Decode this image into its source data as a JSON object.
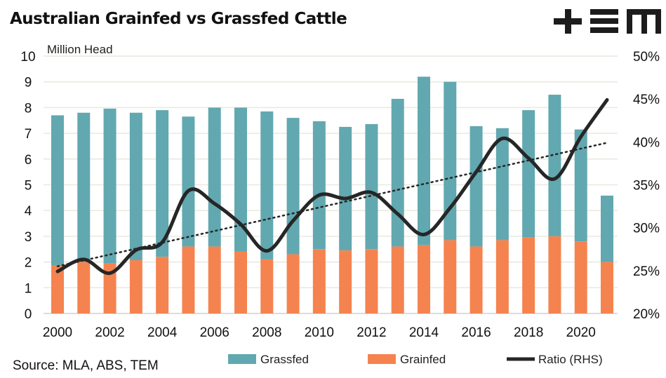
{
  "chart_data": {
    "type": "bar",
    "stacked": true,
    "title": "Australian Grainfed vs Grassfed Cattle",
    "ylabel": "Million Head",
    "source": "Source: MLA, ABS, TEM",
    "logo_text": "+EM",
    "x": [
      2000,
      2001,
      2002,
      2003,
      2004,
      2005,
      2006,
      2007,
      2008,
      2009,
      2010,
      2011,
      2012,
      2013,
      2014,
      2015,
      2016,
      2017,
      2018,
      2019,
      2020,
      2021
    ],
    "xtick_labels": [
      "2000",
      "2002",
      "2004",
      "2006",
      "2008",
      "2010",
      "2012",
      "2014",
      "2016",
      "2018",
      "2020"
    ],
    "ylim": [
      0,
      10
    ],
    "ytick_labels": [
      "0",
      "1",
      "2",
      "3",
      "4",
      "5",
      "6",
      "7",
      "8",
      "9",
      "10"
    ],
    "y2lim": [
      20,
      50
    ],
    "y2tick_labels": [
      "20%",
      "25%",
      "30%",
      "35%",
      "40%",
      "45%",
      "50%"
    ],
    "grid": true,
    "legend_position": "bottom",
    "series": [
      {
        "name": "Grainfed",
        "kind": "bar",
        "color": "#f5834f",
        "values": [
          1.88,
          2.0,
          1.94,
          2.07,
          2.2,
          2.6,
          2.6,
          2.4,
          2.1,
          2.3,
          2.5,
          2.45,
          2.5,
          2.6,
          2.65,
          2.85,
          2.6,
          2.85,
          2.95,
          3.0,
          2.8,
          2.0
        ]
      },
      {
        "name": "Grassfed",
        "kind": "bar",
        "color": "#62a8b0",
        "values": [
          5.82,
          5.8,
          6.02,
          5.73,
          5.7,
          5.05,
          5.4,
          5.6,
          5.75,
          5.3,
          4.97,
          4.8,
          4.86,
          5.74,
          6.55,
          6.15,
          4.68,
          4.35,
          4.95,
          5.5,
          4.35,
          2.58
        ]
      },
      {
        "name": "Ratio (RHS)",
        "kind": "line",
        "axis": "right",
        "color": "#262626",
        "values": [
          24.9,
          26.3,
          24.7,
          27.4,
          28.3,
          34.3,
          32.8,
          30.4,
          27.3,
          30.8,
          33.8,
          33.4,
          34.1,
          31.6,
          29.2,
          32.3,
          36.5,
          40.4,
          38.1,
          35.7,
          40.6,
          44.9
        ]
      }
    ],
    "trendline": {
      "of": "Ratio (RHS)",
      "style": "dotted",
      "start": 25.5,
      "end": 39.9
    }
  }
}
